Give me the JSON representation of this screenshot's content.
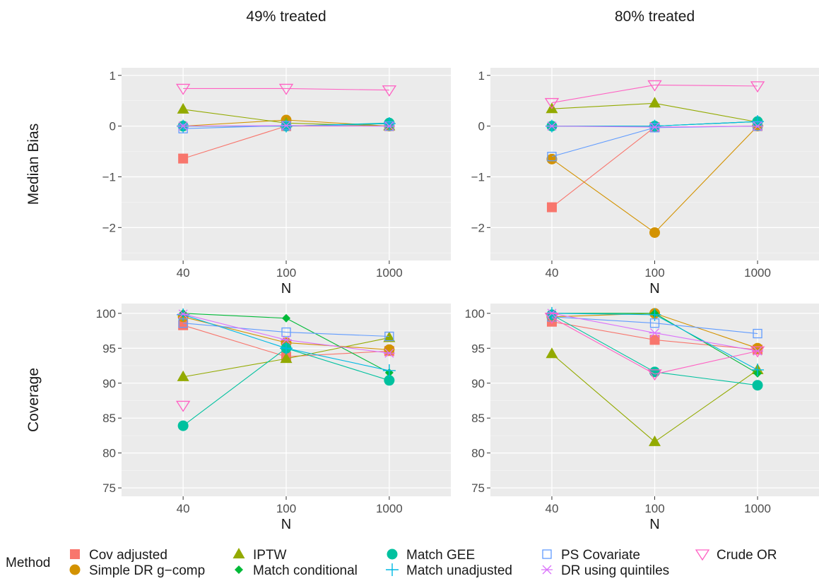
{
  "chart_data": {
    "type": "line",
    "xlabel": "N",
    "x_categories": [
      "40",
      "100",
      "1000"
    ],
    "facets": {
      "columns": [
        "49% treated",
        "80% treated"
      ],
      "rows": [
        "Median Bias",
        "Coverage"
      ]
    },
    "legend": {
      "title": "Method",
      "position": "bottom"
    },
    "grid": true,
    "rows": [
      {
        "label": "Median Bias",
        "ylim": [
          -2.65,
          1.15
        ],
        "yticks": [
          "1",
          "0",
          "−1",
          "−2"
        ],
        "ytick_values": [
          1,
          0,
          -1,
          -2
        ]
      },
      {
        "label": "Coverage",
        "ylim": [
          73.8,
          101.4
        ],
        "yticks": [
          "100",
          "95",
          "90",
          "85",
          "80",
          "75"
        ],
        "ytick_values": [
          100,
          95,
          90,
          85,
          80,
          75
        ]
      }
    ],
    "series": [
      {
        "name": "Cov adjusted",
        "color": "#F8766D",
        "marker": "square-filled",
        "bias_49": [
          -0.64,
          0.0,
          0.0
        ],
        "bias_80": [
          -1.6,
          -0.02,
          0.0
        ],
        "cov_49": [
          98.3,
          93.8,
          94.6
        ],
        "cov_80": [
          98.8,
          96.2,
          94.8
        ]
      },
      {
        "name": "Simple DR g−comp",
        "color": "#D39200",
        "marker": "circle-filled",
        "bias_49": [
          0.0,
          0.12,
          0.0
        ],
        "bias_80": [
          -0.65,
          -2.1,
          0.0
        ],
        "cov_49": [
          99.5,
          95.8,
          94.8
        ],
        "cov_80": [
          99.5,
          100.0,
          95.0
        ]
      },
      {
        "name": "IPTW",
        "color": "#93AA00",
        "marker": "triangle-filled",
        "bias_49": [
          0.33,
          0.06,
          0.0
        ],
        "bias_80": [
          0.34,
          0.45,
          0.08
        ],
        "cov_49": [
          90.9,
          93.5,
          96.5
        ],
        "cov_80": [
          94.2,
          81.6,
          91.9
        ]
      },
      {
        "name": "Match conditional",
        "color": "#00BA38",
        "marker": "diamond-filled",
        "bias_49": [
          0.0,
          0.0,
          0.05
        ],
        "bias_80": [
          0.0,
          0.0,
          0.09
        ],
        "cov_49": [
          100.0,
          99.3,
          91.5
        ],
        "cov_80": [
          100.0,
          100.0,
          91.4
        ]
      },
      {
        "name": "Match GEE",
        "color": "#00C19F",
        "marker": "circle-filled",
        "bias_49": [
          0.0,
          0.0,
          0.06
        ],
        "bias_80": [
          0.0,
          0.0,
          0.09
        ],
        "cov_49": [
          83.9,
          95.0,
          90.4
        ],
        "cov_80": [
          99.8,
          91.6,
          89.7
        ]
      },
      {
        "name": "Match unadjusted",
        "color": "#00B9E3",
        "marker": "plus",
        "bias_49": [
          0.0,
          0.0,
          0.05
        ],
        "bias_80": [
          0.0,
          0.0,
          0.09
        ],
        "cov_49": [
          99.8,
          95.0,
          91.8
        ],
        "cov_80": [
          100.0,
          99.8,
          91.9
        ]
      },
      {
        "name": "PS Covariate",
        "color": "#619CFF",
        "marker": "square-open",
        "bias_49": [
          -0.05,
          0.01,
          0.0
        ],
        "bias_80": [
          -0.6,
          -0.03,
          0.0
        ],
        "cov_49": [
          98.6,
          97.3,
          96.7
        ],
        "cov_80": [
          99.5,
          98.6,
          97.1
        ]
      },
      {
        "name": "DR using quintiles",
        "color": "#DB72FB",
        "marker": "asterisk",
        "bias_49": [
          0.0,
          0.01,
          0.0
        ],
        "bias_80": [
          0.0,
          -0.02,
          0.0
        ],
        "cov_49": [
          99.9,
          96.2,
          94.3
        ],
        "cov_80": [
          100.0,
          97.2,
          94.6
        ]
      },
      {
        "name": "Crude OR",
        "color": "#FF61C3",
        "marker": "triangle-down-open",
        "bias_49": [
          0.74,
          0.74,
          0.71
        ],
        "bias_80": [
          0.46,
          0.81,
          0.79
        ],
        "cov_49": [
          86.8,
          null,
          null
        ],
        "cov_80": [
          99.4,
          91.3,
          94.6
        ]
      }
    ]
  }
}
